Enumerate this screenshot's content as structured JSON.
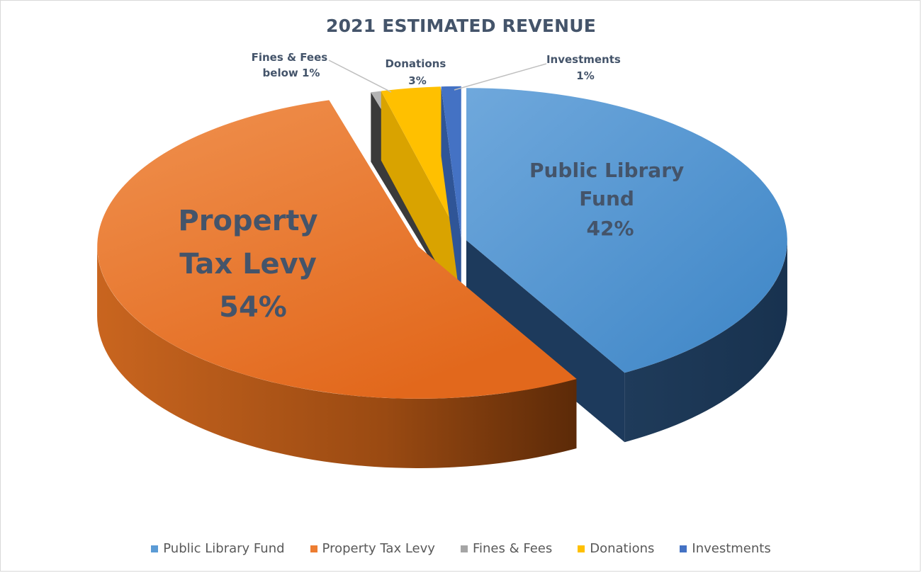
{
  "chart_data": {
    "type": "pie",
    "title": "2021 ESTIMATED REVENUE",
    "categories": [
      "Public Library Fund",
      "Property Tax Levy",
      "Fines & Fees",
      "Donations",
      "Investments"
    ],
    "values": [
      42,
      54,
      0.5,
      3,
      1
    ],
    "colors": [
      "#5b9bd5",
      "#ed7d31",
      "#a5a5a5",
      "#ffc000",
      "#4472c4"
    ],
    "data_labels": [
      {
        "name": "Public Library Fund",
        "lines": [
          "Public Library",
          "Fund",
          "42%"
        ]
      },
      {
        "name": "Property Tax Levy",
        "lines": [
          "Property",
          "Tax Levy",
          "54%"
        ]
      },
      {
        "name": "Fines & Fees",
        "lines": [
          "Fines & Fees",
          "below 1%"
        ]
      },
      {
        "name": "Donations",
        "lines": [
          "Donations",
          "3%"
        ]
      },
      {
        "name": "Investments",
        "lines": [
          "Investments",
          "1%"
        ]
      }
    ],
    "legend_position": "bottom",
    "style": "3d-exploded"
  }
}
